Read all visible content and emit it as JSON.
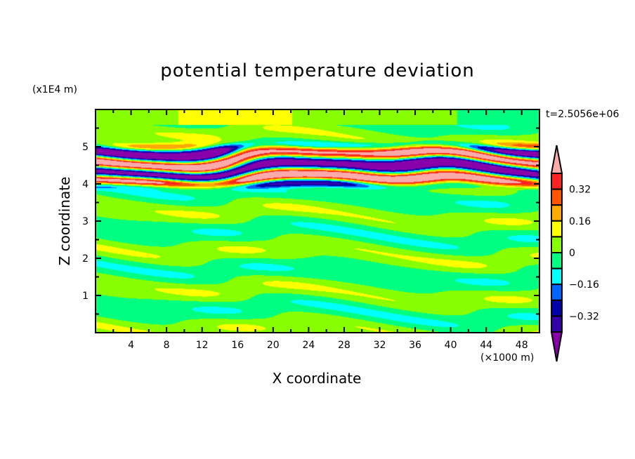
{
  "chart_data": {
    "type": "heatmap",
    "title": "potential temperature deviation",
    "xlabel": "X coordinate",
    "ylabel": "Z coordinate",
    "x_unit": "(×1000 m)",
    "y_unit": "(x1E4 m)",
    "time_label": "t=2.5056e+06",
    "xlim": [
      0,
      50
    ],
    "ylim": [
      0,
      6
    ],
    "x_ticks": [
      4,
      8,
      12,
      16,
      20,
      24,
      28,
      32,
      36,
      40,
      44,
      48
    ],
    "y_ticks": [
      1,
      2,
      3,
      4,
      5
    ],
    "colorbar": {
      "levels": [
        -0.4,
        -0.32,
        -0.24,
        -0.16,
        -0.08,
        0,
        0.08,
        0.16,
        0.24,
        0.32,
        0.4
      ],
      "labels": [
        "0.32",
        "0.16",
        "0",
        "-0.16",
        "-0.32"
      ],
      "label_values": [
        0.32,
        0.16,
        0,
        -0.16,
        -0.32
      ],
      "colors_low_to_high": [
        "#8800aa",
        "#3300aa",
        "#0000aa",
        "#0066ff",
        "#00ffff",
        "#00ff80",
        "#88ff00",
        "#ffff00",
        "#ffaa00",
        "#ff5500",
        "#ff2222",
        "#ffaaaa"
      ]
    },
    "description_of_field": "horizontal bands of strong alternating positive/negative deviation between z=3.6 and 5.4 (x1E4 m); weak (-0.08..0.08) elsewhere"
  }
}
